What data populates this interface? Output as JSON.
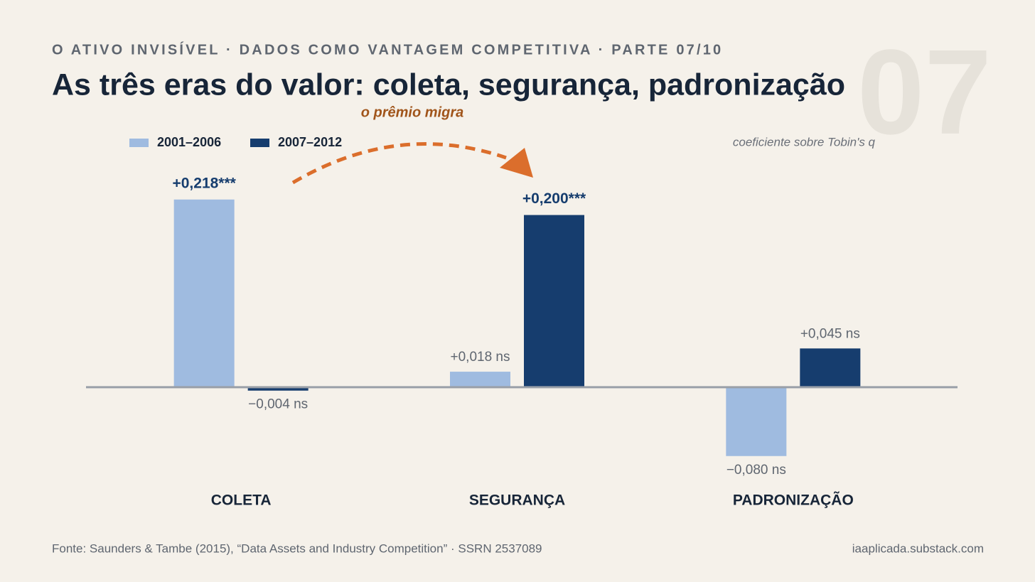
{
  "chart_data": {
    "type": "bar",
    "kicker": "O ATIVO INVISÍVEL · DADOS COMO VANTAGEM COMPETITIVA · PARTE 07/10",
    "title": "As três eras do valor: coleta, segurança, padronização",
    "watermark": "07",
    "annotation": "o prêmio migra",
    "y_label": "coeficiente sobre Tobin's q",
    "categories": [
      "COLETA",
      "SEGURANÇA",
      "PADRONIZAÇÃO"
    ],
    "series": [
      {
        "name": "2001–2006",
        "color": "#9fbbe0",
        "values": [
          0.218,
          0.018,
          -0.08
        ],
        "value_labels": [
          "+0,218***",
          "+0,018 ns",
          "−0,080 ns"
        ]
      },
      {
        "name": "2007–2012",
        "color": "#163d6e",
        "values": [
          -0.004,
          0.2,
          0.045
        ],
        "value_labels": [
          "−0,004 ns",
          "+0,200***",
          "+0,045 ns"
        ]
      }
    ],
    "ylim": [
      -0.1,
      0.25
    ],
    "source": "Fonte: Saunders & Tambe (2015), “Data Assets and Industry Competition” · SSRN 2537089",
    "site": "iaaplicada.substack.com"
  }
}
